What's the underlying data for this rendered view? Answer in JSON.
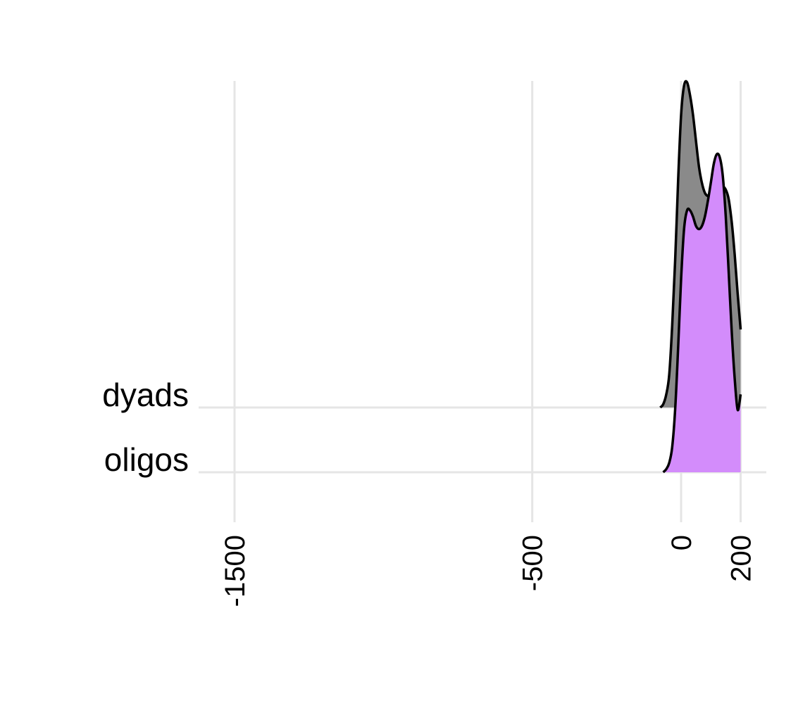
{
  "chart_data": {
    "type": "ridgeline-density",
    "title": "",
    "xlabel": "",
    "ylabel": "",
    "xlim": [
      -1620,
      260
    ],
    "x_ticks": [
      -1500,
      -500,
      0,
      200
    ],
    "x_tick_labels": [
      "-1500",
      "-500",
      "0",
      "200"
    ],
    "categories": [
      "oligos",
      "dyads"
    ],
    "grid": true,
    "series": [
      {
        "name": "dyads",
        "fill": "#8a8a8a",
        "x": [
          -70,
          -60,
          -50,
          -40,
          -30,
          -20,
          -10,
          0,
          10,
          20,
          30,
          40,
          50,
          60,
          70,
          80,
          90,
          100,
          110,
          120,
          130,
          140,
          150,
          160,
          170,
          180,
          190,
          200
        ],
        "density": [
          0.0,
          0.01,
          0.04,
          0.1,
          0.25,
          0.45,
          0.7,
          0.9,
          0.99,
          1.0,
          0.96,
          0.9,
          0.82,
          0.74,
          0.69,
          0.66,
          0.65,
          0.65,
          0.66,
          0.67,
          0.68,
          0.68,
          0.67,
          0.64,
          0.57,
          0.47,
          0.35,
          0.24
        ]
      },
      {
        "name": "oligos",
        "fill": "#d38cfb",
        "x": [
          -60,
          -50,
          -40,
          -30,
          -20,
          -10,
          0,
          10,
          20,
          30,
          40,
          50,
          60,
          70,
          80,
          90,
          100,
          110,
          120,
          130,
          140,
          150,
          160,
          170,
          180,
          190,
          200
        ],
        "density": [
          0.0,
          0.01,
          0.03,
          0.08,
          0.2,
          0.4,
          0.62,
          0.78,
          0.84,
          0.84,
          0.82,
          0.79,
          0.78,
          0.79,
          0.82,
          0.87,
          0.93,
          0.99,
          1.02,
          1.01,
          0.95,
          0.82,
          0.64,
          0.45,
          0.3,
          0.2,
          0.25
        ]
      }
    ]
  }
}
